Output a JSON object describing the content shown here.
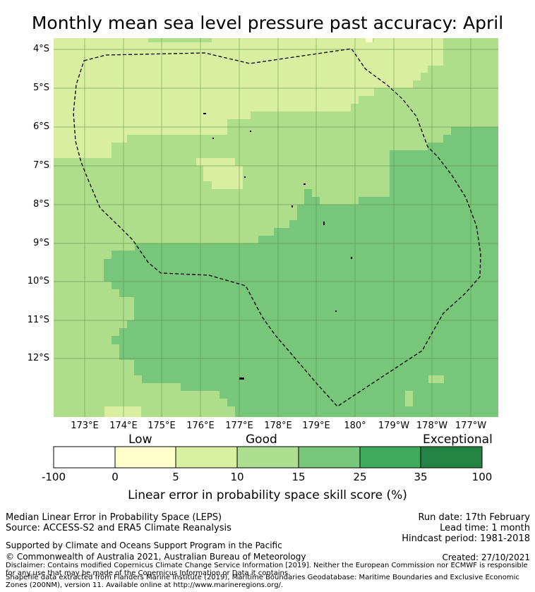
{
  "title": "Monthly mean sea level pressure past accuracy: April",
  "map": {
    "latitude_labels": [
      "4°S",
      "5°S",
      "6°S",
      "7°S",
      "8°S",
      "9°S",
      "10°S",
      "11°S",
      "12°S"
    ],
    "longitude_labels": [
      "173°E",
      "174°E",
      "175°E",
      "176°E",
      "177°E",
      "178°E",
      "179°E",
      "180°",
      "179°W",
      "178°W",
      "177°W"
    ],
    "skill_zones": [
      {
        "name": "low",
        "color": "#fefcd0"
      },
      {
        "name": "good_low",
        "color": "#d9eea0"
      },
      {
        "name": "good_high",
        "color": "#aedd8c"
      },
      {
        "name": "exceptional_low",
        "color": "#78c679"
      }
    ],
    "boundary": "dashed",
    "grid_color": "#5c8a4a"
  },
  "colorbar": {
    "categories": [
      "Low",
      "Good",
      "Exceptional"
    ],
    "ticks": [
      "-100",
      "0",
      "5",
      "10",
      "15",
      "25",
      "35",
      "100"
    ],
    "colors": [
      "#ffffff",
      "#ffffcc",
      "#d9f0a3",
      "#addd8e",
      "#78c679",
      "#41ab5d",
      "#238443"
    ],
    "label": "Linear error in probability space skill score (%)"
  },
  "footer": {
    "left": [
      "Median Linear Error in Probability Space (LEPS)",
      "Source: ACCESS-S2 and ERA5 Climate Reanalysis",
      "Supported by Climate and Oceans Support Program in the Pacific",
      "© Commonwealth of Australia 2021, Australian Bureau of Meteorology"
    ],
    "right": [
      "Run date: 17th February",
      "Lead time: 1 month",
      "Hindcast period: 1981-2018",
      "Created: 27/10/2021"
    ],
    "disclaimer": "Disclaimer: Contains modified Copernicus Climate Change Service Information [2019]. Neither the European Commission nor ECMWF is responsible for any use that may be made of the Copernicus Information or Data it contains.",
    "shapefile": "Shapefile data extracted from Flanders Marine Institute (2019), Maritime Boundaries Geodatabase: Maritime Boundaries and Exclusive Economic Zones (200NM), version 11. Available online at http://www.marineregions.org/."
  }
}
